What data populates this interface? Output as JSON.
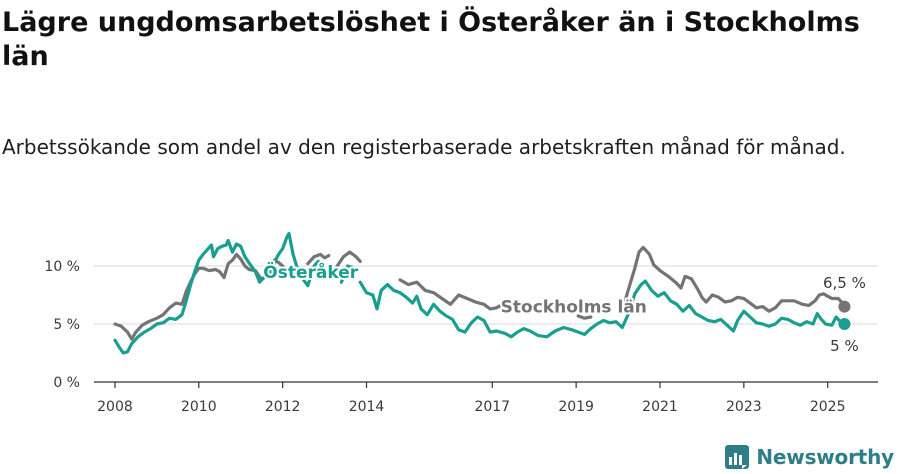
{
  "title": "Lägre ungdomsarbetslöshet i Österåker än i Stockholms län",
  "subtitle": "Arbetssökande som andel av den registerbaserade arbetskraften månad för månad.",
  "brand": {
    "name": "Newsworthy",
    "icon": "newsworthy-logo-icon",
    "color": "#2d7e86"
  },
  "chart_data": {
    "type": "line",
    "title": "Lägre ungdomsarbetslöshet i Österåker än i Stockholms län",
    "subtitle": "Arbetssökande som andel av den registerbaserade arbetskraften månad för månad.",
    "xlabel": "",
    "ylabel": "",
    "xlim": [
      2007.5,
      2026.2
    ],
    "ylim": [
      0,
      12.5
    ],
    "grid": true,
    "legend": "inline labels",
    "x_ticks": [
      {
        "value": 2008,
        "label": "2008"
      },
      {
        "value": 2010,
        "label": "2010"
      },
      {
        "value": 2012,
        "label": "2012"
      },
      {
        "value": 2014,
        "label": "2014"
      },
      {
        "value": 2017,
        "label": "2017"
      },
      {
        "value": 2019,
        "label": "2019"
      },
      {
        "value": 2021,
        "label": "2021"
      },
      {
        "value": 2023,
        "label": "2023"
      },
      {
        "value": 2025,
        "label": "2025"
      }
    ],
    "y_ticks": [
      {
        "value": 0,
        "label": "0 %"
      },
      {
        "value": 5,
        "label": "5 %"
      },
      {
        "value": 10,
        "label": "10 %"
      }
    ],
    "series": [
      {
        "name": "Stockholms län",
        "color": "#747474",
        "end_label": "6,5 %",
        "segments": [
          [
            [
              2008.0,
              5.0
            ],
            [
              2008.15,
              4.8
            ],
            [
              2008.3,
              4.3
            ],
            [
              2008.4,
              3.7
            ],
            [
              2008.5,
              4.3
            ],
            [
              2008.65,
              4.9
            ],
            [
              2008.8,
              5.2
            ],
            [
              2009.0,
              5.5
            ],
            [
              2009.15,
              5.8
            ],
            [
              2009.3,
              6.4
            ],
            [
              2009.45,
              6.8
            ],
            [
              2009.6,
              6.7
            ],
            [
              2009.7,
              7.8
            ],
            [
              2009.8,
              8.6
            ],
            [
              2009.9,
              9.3
            ],
            [
              2010.0,
              9.8
            ],
            [
              2010.1,
              9.8
            ],
            [
              2010.25,
              9.6
            ],
            [
              2010.4,
              9.7
            ],
            [
              2010.5,
              9.5
            ],
            [
              2010.6,
              9.0
            ],
            [
              2010.7,
              10.2
            ],
            [
              2010.8,
              10.5
            ],
            [
              2010.9,
              11.0
            ],
            [
              2011.0,
              10.6
            ],
            [
              2011.1,
              10.0
            ],
            [
              2011.2,
              9.7
            ],
            [
              2011.35,
              9.6
            ],
            [
              2011.5,
              8.8
            ],
            [
              2011.6,
              9.2
            ],
            [
              2011.7,
              9.8
            ],
            [
              2011.8,
              10.5
            ],
            [
              2011.9,
              10.3
            ],
            [
              2012.0,
              10.0
            ],
            [
              2012.1,
              9.4
            ],
            [
              2012.25,
              9.4
            ],
            [
              2012.4,
              9.0
            ]
          ],
          [
            [
              2012.6,
              10.2
            ],
            [
              2012.75,
              10.8
            ],
            [
              2012.9,
              11.0
            ],
            [
              2013.0,
              10.7
            ],
            [
              2013.1,
              10.9
            ]
          ],
          [
            [
              2013.3,
              10.0
            ],
            [
              2013.45,
              10.8
            ],
            [
              2013.6,
              11.2
            ],
            [
              2013.75,
              10.8
            ],
            [
              2013.85,
              10.4
            ]
          ],
          [
            [
              2014.8,
              8.8
            ],
            [
              2015.0,
              8.4
            ],
            [
              2015.2,
              8.6
            ],
            [
              2015.4,
              7.9
            ],
            [
              2015.6,
              7.7
            ],
            [
              2015.8,
              7.2
            ],
            [
              2016.0,
              6.7
            ],
            [
              2016.2,
              7.5
            ],
            [
              2016.4,
              7.2
            ],
            [
              2016.6,
              6.9
            ],
            [
              2016.8,
              6.7
            ],
            [
              2016.95,
              6.3
            ],
            [
              2017.1,
              6.4
            ],
            [
              2017.2,
              6.6
            ]
          ],
          [
            [
              2019.05,
              5.7
            ],
            [
              2019.2,
              5.5
            ],
            [
              2019.35,
              5.6
            ]
          ],
          [
            [
              2020.1,
              6.2
            ],
            [
              2020.25,
              8.0
            ],
            [
              2020.4,
              9.8
            ],
            [
              2020.5,
              11.2
            ],
            [
              2020.6,
              11.6
            ],
            [
              2020.75,
              11.0
            ],
            [
              2020.85,
              10.1
            ],
            [
              2021.0,
              9.6
            ],
            [
              2021.2,
              9.1
            ],
            [
              2021.4,
              8.5
            ],
            [
              2021.5,
              8.1
            ],
            [
              2021.6,
              9.1
            ],
            [
              2021.75,
              8.9
            ],
            [
              2021.9,
              8.0
            ],
            [
              2022.0,
              7.3
            ],
            [
              2022.1,
              6.9
            ],
            [
              2022.25,
              7.5
            ],
            [
              2022.4,
              7.3
            ],
            [
              2022.55,
              6.9
            ],
            [
              2022.7,
              7.0
            ],
            [
              2022.85,
              7.3
            ],
            [
              2023.0,
              7.2
            ],
            [
              2023.15,
              6.8
            ],
            [
              2023.3,
              6.4
            ],
            [
              2023.45,
              6.5
            ],
            [
              2023.6,
              6.1
            ],
            [
              2023.75,
              6.4
            ],
            [
              2023.9,
              7.0
            ],
            [
              2024.0,
              7.0
            ],
            [
              2024.2,
              7.0
            ],
            [
              2024.4,
              6.7
            ],
            [
              2024.55,
              6.6
            ],
            [
              2024.7,
              7.0
            ],
            [
              2024.8,
              7.5
            ],
            [
              2024.9,
              7.6
            ],
            [
              2025.0,
              7.4
            ],
            [
              2025.1,
              7.2
            ],
            [
              2025.25,
              7.2
            ],
            [
              2025.35,
              6.8
            ],
            [
              2025.4,
              6.5
            ]
          ]
        ]
      },
      {
        "name": "Österåker",
        "color": "#1a9e8f",
        "end_label": "5 %",
        "segments": [
          [
            [
              2008.0,
              3.6
            ],
            [
              2008.1,
              3.0
            ],
            [
              2008.2,
              2.5
            ],
            [
              2008.3,
              2.6
            ],
            [
              2008.4,
              3.3
            ],
            [
              2008.55,
              3.9
            ],
            [
              2008.7,
              4.3
            ],
            [
              2008.85,
              4.6
            ],
            [
              2009.0,
              5.0
            ],
            [
              2009.15,
              5.1
            ],
            [
              2009.3,
              5.5
            ],
            [
              2009.45,
              5.4
            ],
            [
              2009.6,
              5.8
            ],
            [
              2009.7,
              7.0
            ],
            [
              2009.8,
              8.3
            ],
            [
              2009.9,
              9.5
            ],
            [
              2010.0,
              10.5
            ],
            [
              2010.1,
              11.0
            ],
            [
              2010.2,
              11.4
            ],
            [
              2010.3,
              11.8
            ],
            [
              2010.35,
              10.8
            ],
            [
              2010.45,
              11.5
            ],
            [
              2010.55,
              11.7
            ],
            [
              2010.65,
              11.8
            ],
            [
              2010.7,
              12.2
            ],
            [
              2010.8,
              11.2
            ],
            [
              2010.9,
              11.9
            ],
            [
              2011.0,
              11.7
            ],
            [
              2011.1,
              10.8
            ],
            [
              2011.25,
              10.0
            ],
            [
              2011.35,
              9.5
            ],
            [
              2011.45,
              8.6
            ],
            [
              2011.55,
              9.0
            ],
            [
              2011.7,
              9.3
            ],
            [
              2011.8,
              10.3
            ],
            [
              2011.9,
              11.0
            ],
            [
              2012.0,
              11.5
            ],
            [
              2012.1,
              12.5
            ],
            [
              2012.15,
              12.8
            ],
            [
              2012.25,
              11.0
            ],
            [
              2012.35,
              9.8
            ],
            [
              2012.5,
              8.8
            ],
            [
              2012.6,
              8.3
            ],
            [
              2012.75,
              10.0
            ],
            [
              2012.85,
              10.4
            ]
          ],
          [
            [
              2013.4,
              8.6
            ],
            [
              2013.55,
              10.0
            ],
            [
              2013.65,
              9.9
            ]
          ],
          [
            [
              2013.85,
              8.6
            ],
            [
              2014.0,
              7.7
            ],
            [
              2014.15,
              7.5
            ],
            [
              2014.25,
              6.3
            ],
            [
              2014.35,
              7.9
            ],
            [
              2014.5,
              8.4
            ],
            [
              2014.65,
              7.9
            ],
            [
              2014.8,
              7.7
            ],
            [
              2014.95,
              7.3
            ],
            [
              2015.1,
              6.8
            ],
            [
              2015.2,
              7.4
            ],
            [
              2015.3,
              6.3
            ],
            [
              2015.45,
              5.8
            ],
            [
              2015.6,
              6.7
            ],
            [
              2015.75,
              6.1
            ],
            [
              2015.9,
              5.7
            ],
            [
              2016.05,
              5.4
            ],
            [
              2016.2,
              4.5
            ],
            [
              2016.35,
              4.3
            ],
            [
              2016.5,
              5.1
            ],
            [
              2016.65,
              5.6
            ],
            [
              2016.8,
              5.3
            ],
            [
              2016.95,
              4.3
            ],
            [
              2017.1,
              4.4
            ],
            [
              2017.3,
              4.2
            ],
            [
              2017.45,
              3.9
            ],
            [
              2017.6,
              4.3
            ],
            [
              2017.75,
              4.6
            ],
            [
              2017.9,
              4.4
            ],
            [
              2018.1,
              4.0
            ],
            [
              2018.3,
              3.9
            ],
            [
              2018.5,
              4.4
            ],
            [
              2018.7,
              4.7
            ],
            [
              2018.9,
              4.5
            ],
            [
              2019.05,
              4.3
            ],
            [
              2019.2,
              4.1
            ],
            [
              2019.35,
              4.6
            ],
            [
              2019.5,
              5.0
            ],
            [
              2019.65,
              5.3
            ],
            [
              2019.8,
              5.1
            ],
            [
              2019.95,
              5.2
            ],
            [
              2020.1,
              4.7
            ],
            [
              2020.25,
              5.9
            ],
            [
              2020.4,
              7.6
            ],
            [
              2020.55,
              8.4
            ],
            [
              2020.65,
              8.7
            ],
            [
              2020.8,
              7.9
            ],
            [
              2020.95,
              7.4
            ],
            [
              2021.1,
              7.7
            ],
            [
              2021.25,
              7.0
            ],
            [
              2021.4,
              6.7
            ],
            [
              2021.55,
              6.1
            ],
            [
              2021.7,
              6.6
            ],
            [
              2021.85,
              5.9
            ],
            [
              2022.0,
              5.6
            ],
            [
              2022.15,
              5.3
            ],
            [
              2022.3,
              5.2
            ],
            [
              2022.45,
              5.4
            ],
            [
              2022.6,
              4.9
            ],
            [
              2022.75,
              4.4
            ],
            [
              2022.85,
              5.3
            ],
            [
              2023.0,
              6.1
            ],
            [
              2023.15,
              5.6
            ],
            [
              2023.3,
              5.1
            ],
            [
              2023.45,
              5.0
            ],
            [
              2023.6,
              4.8
            ],
            [
              2023.75,
              5.0
            ],
            [
              2023.9,
              5.5
            ],
            [
              2024.05,
              5.4
            ],
            [
              2024.2,
              5.1
            ],
            [
              2024.35,
              4.9
            ],
            [
              2024.5,
              5.2
            ],
            [
              2024.65,
              5.0
            ],
            [
              2024.75,
              5.9
            ],
            [
              2024.85,
              5.4
            ],
            [
              2024.95,
              5.0
            ],
            [
              2025.1,
              4.9
            ],
            [
              2025.2,
              5.6
            ],
            [
              2025.3,
              5.2
            ],
            [
              2025.4,
              5.0
            ]
          ]
        ]
      }
    ],
    "annotations": [
      {
        "text": "Österåker",
        "color": "#1a9e8f",
        "x": 2013.8,
        "y": 9.5,
        "anchor": "end"
      },
      {
        "text": "Stockholms län",
        "color": "#747474",
        "x": 2017.2,
        "y": 6.5,
        "anchor": "start"
      },
      {
        "text": "6,5 %",
        "color": "#3a3a3a",
        "x": 2025.4,
        "y": 8.6,
        "anchor": "middle"
      },
      {
        "text": "5 %",
        "color": "#3a3a3a",
        "x": 2025.4,
        "y": 3.2,
        "anchor": "middle"
      }
    ]
  }
}
